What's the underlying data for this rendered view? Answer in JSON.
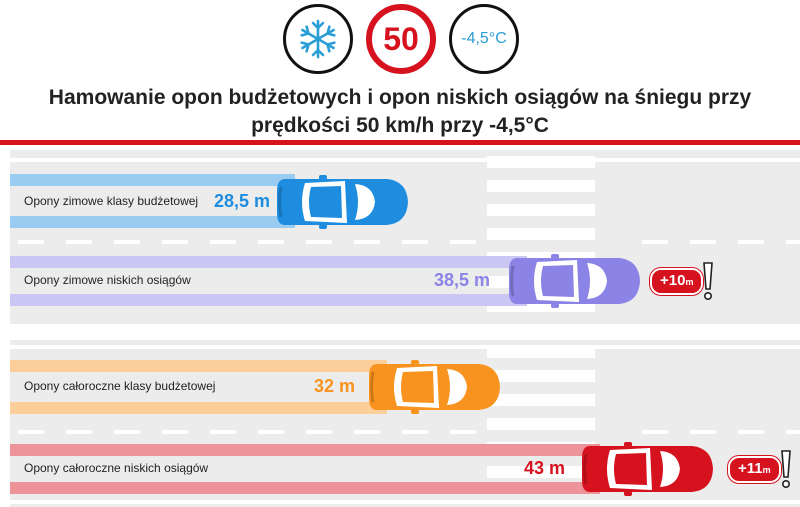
{
  "header": {
    "icons": [
      "snowflake-icon",
      "speed-limit-sign",
      "temperature-sign"
    ],
    "speed": "50",
    "temperature": "-4,5°C",
    "title_line1": "Hamowanie opon budżetowych i opon niskich osiągów na śniegu przy",
    "title_line2": "prędkości 50 km/h przy -4,5°C"
  },
  "lanes": [
    {
      "label": "Opony zimowe klasy budżetowej",
      "distance": "28,5 m",
      "color": "#1e8de0"
    },
    {
      "label": "Opony zimowe niskich osiągów",
      "distance": "38,5 m",
      "color": "#8c83e6",
      "extra_value": "+10",
      "extra_unit": "m"
    },
    {
      "label": "Opony całoroczne klasy budżetowej",
      "distance": "32 m",
      "color": "#f7931e"
    },
    {
      "label": "Opony całoroczne niskich osiągów",
      "distance": "43 m",
      "color": "#d6121f",
      "extra_value": "+11",
      "extra_unit": "m"
    }
  ],
  "colors": {
    "accent": "#d6121f",
    "road": "#ececec"
  }
}
